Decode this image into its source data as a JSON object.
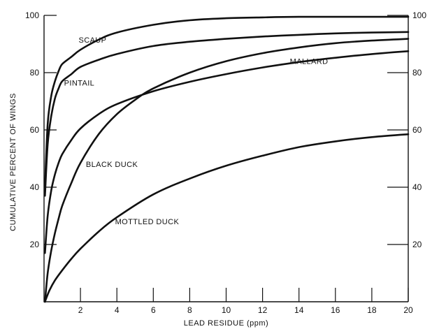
{
  "chart_data": {
    "type": "line",
    "title": "",
    "xlabel": "LEAD RESIDUE (ppm)",
    "ylabel": "CUMULATIVE PERCENT OF WINGS",
    "xlim": [
      0,
      20
    ],
    "ylim": [
      0,
      100
    ],
    "x_ticks": [
      2,
      4,
      6,
      8,
      10,
      12,
      14,
      16,
      18,
      20
    ],
    "y_ticks_left": [
      20,
      40,
      60,
      80,
      100
    ],
    "y_ticks_right": [
      20,
      40,
      60,
      80,
      100
    ],
    "grid": false,
    "series": [
      {
        "name": "SCAUP",
        "x": [
          0.05,
          0.2,
          0.4,
          0.6,
          0.8,
          1,
          1.5,
          2,
          3,
          4,
          6,
          8,
          10,
          12,
          14,
          16,
          18,
          20
        ],
        "y": [
          40,
          62,
          72,
          77,
          80.5,
          83,
          85.5,
          88,
          91.5,
          94,
          96.7,
          98.3,
          99,
          99.3,
          99.5,
          99.5,
          99.5,
          99.5
        ]
      },
      {
        "name": "PINTAIL",
        "x": [
          0.05,
          0.2,
          0.4,
          0.6,
          0.8,
          1,
          1.5,
          2,
          3,
          4,
          6,
          8,
          10,
          12,
          14,
          16,
          18,
          20
        ],
        "y": [
          37,
          55,
          65,
          71,
          74.5,
          77,
          79.5,
          82,
          84.5,
          86.5,
          89.3,
          90.8,
          91.8,
          92.6,
          93.2,
          93.7,
          94,
          94.2
        ]
      },
      {
        "name": "MALLARD",
        "x": [
          0.05,
          0.2,
          0.4,
          0.6,
          0.8,
          1,
          1.5,
          2,
          3,
          4,
          6,
          8,
          10,
          12,
          14,
          16,
          18,
          20
        ],
        "y": [
          17,
          30,
          39,
          44.5,
          48.5,
          51.5,
          56.5,
          60.5,
          65.5,
          69,
          73.5,
          76.8,
          79.5,
          81.8,
          83.7,
          85.2,
          86.5,
          87.5
        ]
      },
      {
        "name": "BLACK DUCK",
        "x": [
          0.05,
          0.2,
          0.4,
          0.6,
          0.8,
          1,
          1.5,
          2,
          3,
          4,
          5,
          6,
          8,
          10,
          12,
          14,
          16,
          18,
          20
        ],
        "y": [
          0,
          10,
          18,
          24,
          29,
          33.5,
          41.5,
          48.5,
          58.5,
          65.5,
          70.5,
          74.5,
          80,
          84,
          86.8,
          88.8,
          90.3,
          91.2,
          91.8
        ]
      },
      {
        "name": "MOTTLED DUCK",
        "x": [
          0.05,
          0.3,
          0.6,
          1,
          1.5,
          2,
          3,
          4,
          6,
          8,
          10,
          12,
          14,
          16,
          18,
          20
        ],
        "y": [
          0,
          4,
          7.5,
          11,
          15,
          18.5,
          24.5,
          29.5,
          37.5,
          43,
          47.5,
          51,
          54,
          56,
          57.5,
          58.5
        ]
      }
    ],
    "labels": [
      {
        "text": "SCAUP",
        "x": 1.9,
        "y": 91.5
      },
      {
        "text": "PINTAIL",
        "x": 1.1,
        "y": 76.5
      },
      {
        "text": "MALLARD",
        "x": 13.5,
        "y": 84
      },
      {
        "text": "BLACK DUCK",
        "x": 2.3,
        "y": 48
      },
      {
        "text": "MOTTLED DUCK",
        "x": 3.9,
        "y": 28
      }
    ]
  }
}
